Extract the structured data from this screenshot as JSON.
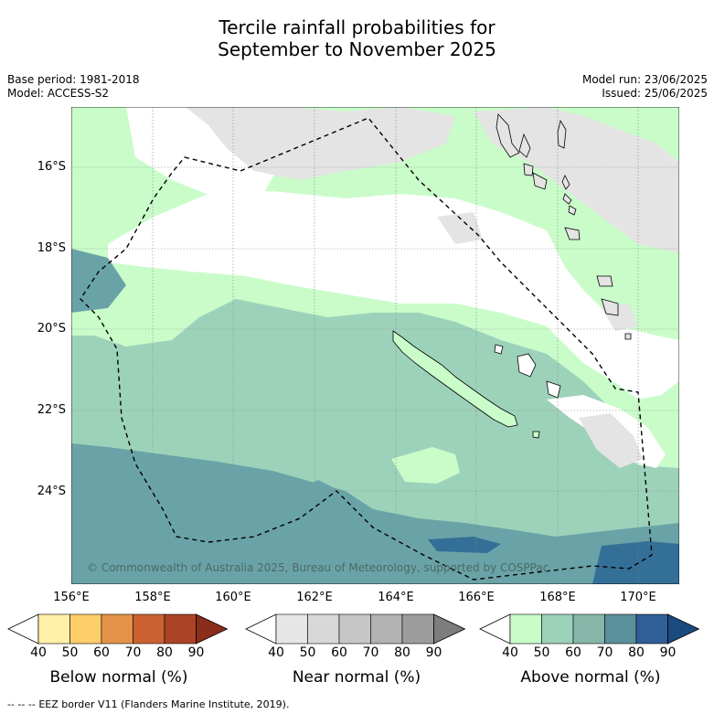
{
  "title_line1": "Tercile rainfall probabilities for",
  "title_line2": "September to November 2025",
  "meta_left": {
    "base_period": "Base period: 1981-2018",
    "model": "Model: ACCESS-S2"
  },
  "meta_right": {
    "model_run": "Model run: 23/06/2025",
    "issued": "Issued: 25/06/2025"
  },
  "axes": {
    "y_ticks": [
      "16°S",
      "18°S",
      "20°S",
      "22°S",
      "24°S"
    ],
    "x_ticks": [
      "156°E",
      "158°E",
      "160°E",
      "162°E",
      "164°E",
      "166°E",
      "168°E",
      "170°E"
    ]
  },
  "copyright": "© Commonwealth of Australia 2025, Bureau of Meteorology, supported by COSPPac",
  "colorbars": [
    {
      "caption": "Below normal (%)",
      "ticks": [
        "40",
        "50",
        "60",
        "70",
        "80",
        "90"
      ],
      "colors": [
        "#ffffff",
        "#fff0a8",
        "#fdcd6a",
        "#e49348",
        "#cb6131",
        "#ac4326",
        "#8b2d1b"
      ]
    },
    {
      "caption": "Near normal (%)",
      "ticks": [
        "40",
        "50",
        "60",
        "70",
        "80",
        "90"
      ],
      "colors": [
        "#ffffff",
        "#e6e6e6",
        "#d8d8d8",
        "#c6c6c6",
        "#b2b2b2",
        "#9c9c9c",
        "#7d7d7d"
      ]
    },
    {
      "caption": "Above normal (%)",
      "ticks": [
        "40",
        "50",
        "60",
        "70",
        "80",
        "90"
      ],
      "colors": [
        "#ffffff",
        "#c9fcc9",
        "#9dd2ba",
        "#86b7a8",
        "#5a8f9c",
        "#2f5f94",
        "#1a4a7e"
      ]
    }
  ],
  "legend": {
    "eez_label": "EEZ border V11 (Flanders Marine Institute, 2019)."
  },
  "map_colors": {
    "above_40_50": "#c9fcc9",
    "above_50_60": "#9dd2ba",
    "above_60_70": "#6aa3a7",
    "above_70_80": "#336f96",
    "near_40_50": "#e4e4e4",
    "white": "#ffffff"
  }
}
